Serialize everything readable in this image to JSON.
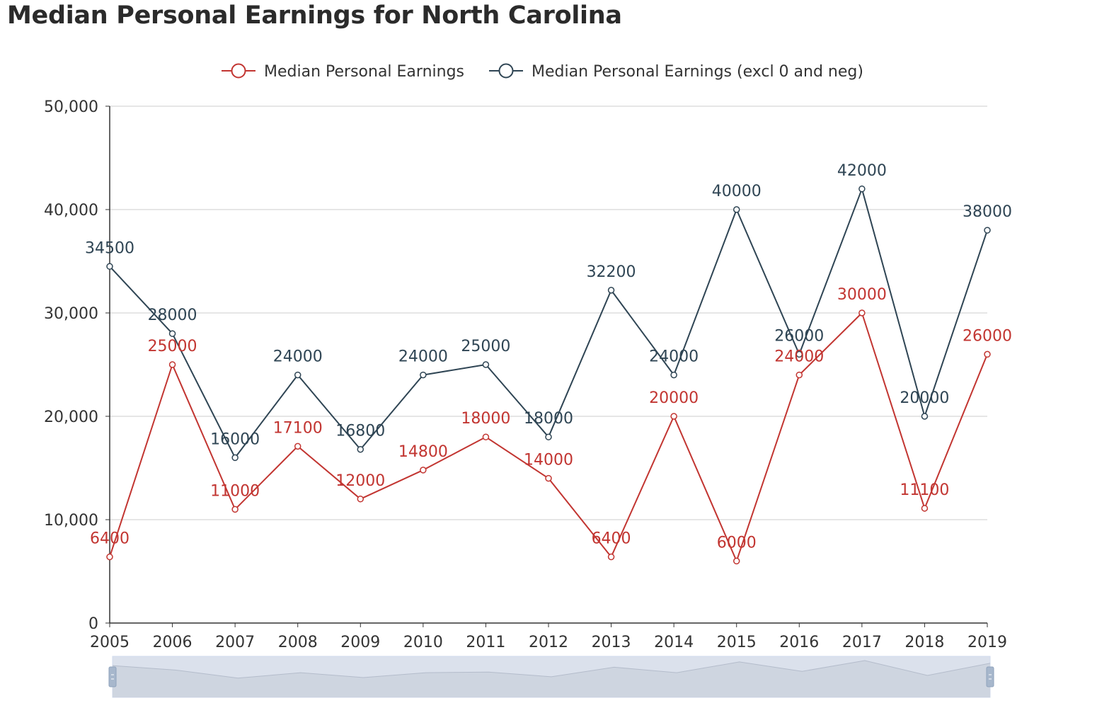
{
  "chart_data": {
    "type": "line",
    "title": "Median Personal Earnings for North Carolina",
    "x": [
      "2005",
      "2006",
      "2007",
      "2008",
      "2009",
      "2010",
      "2011",
      "2012",
      "2013",
      "2014",
      "2015",
      "2016",
      "2017",
      "2018",
      "2019"
    ],
    "y_ticks": [
      "0",
      "10,000",
      "20,000",
      "30,000",
      "40,000",
      "50,000"
    ],
    "ylim": [
      0,
      50000
    ],
    "grid": true,
    "legend_position": "top-center",
    "series": [
      {
        "name": "Median Personal Earnings",
        "color": "#c23531",
        "values": [
          6400,
          25000,
          11000,
          17100,
          12000,
          14800,
          18000,
          14000,
          6400,
          20000,
          6000,
          24000,
          30000,
          11100,
          26000
        ],
        "labels": [
          "6400",
          "25000",
          "11000",
          "17100",
          "12000",
          "14800",
          "18000",
          "14000",
          "6400",
          "20000",
          "6000",
          "24000",
          "30000",
          "11100",
          "26000"
        ]
      },
      {
        "name": "Median Personal Earnings (excl 0 and neg)",
        "color": "#2f4554",
        "values": [
          34500,
          28000,
          16000,
          24000,
          16800,
          24000,
          25000,
          18000,
          32200,
          24000,
          40000,
          26000,
          42000,
          20000,
          38000
        ],
        "labels": [
          "34500",
          "28000",
          "16000",
          "24000",
          "16800",
          "24000",
          "25000",
          "18000",
          "32200",
          "24000",
          "40000",
          "26000",
          "42000",
          "20000",
          "38000"
        ]
      }
    ],
    "data_zoom": {
      "start_percent": 0,
      "end_percent": 100
    }
  }
}
